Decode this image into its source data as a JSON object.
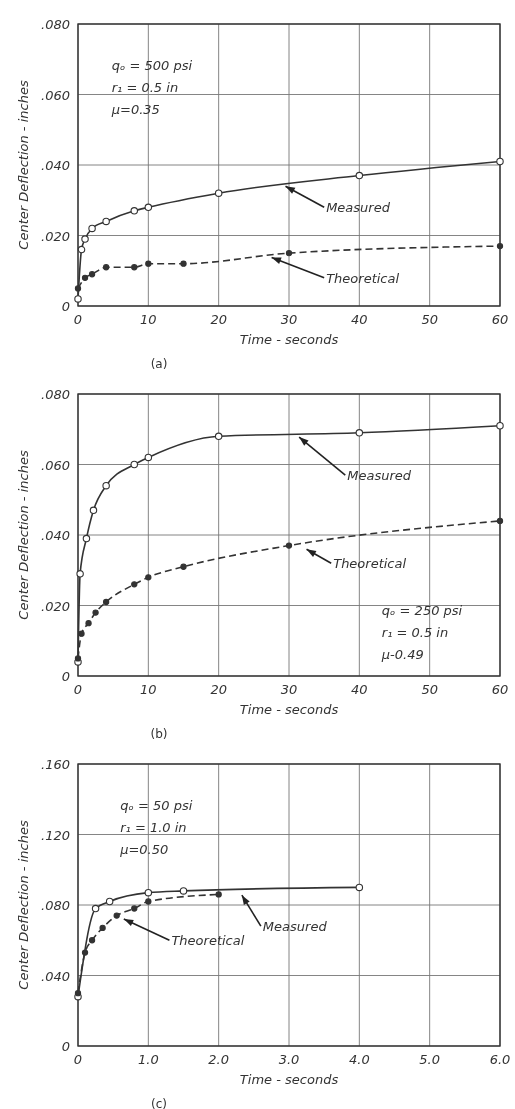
{
  "chart_data": [
    {
      "type": "line",
      "title": "(a)",
      "xlabel": "Time - seconds",
      "ylabel": "Center Deflection - inches",
      "annotations": [
        "qₒ = 500 psi",
        "r₁ = 0.5 in",
        "μ=0.35"
      ],
      "xlim": [
        0,
        60
      ],
      "xticks": [
        0,
        10,
        20,
        30,
        40,
        50,
        60
      ],
      "ylim": [
        0,
        0.08
      ],
      "yticks": [
        {
          "value": 0,
          "label": "0"
        },
        {
          "value": 0.02,
          "label": ".020"
        },
        {
          "value": 0.04,
          "label": ".040"
        },
        {
          "value": 0.06,
          "label": ".060"
        },
        {
          "value": 0.08,
          "label": ".080"
        }
      ],
      "grid": true,
      "series": [
        {
          "name": "Measured",
          "color": "#333333",
          "marker": "circle",
          "line_style": "solid",
          "x": [
            0,
            0.5,
            1,
            2,
            4,
            8,
            10,
            20,
            40,
            60
          ],
          "values": [
            0.002,
            0.016,
            0.019,
            0.022,
            0.024,
            0.027,
            0.028,
            0.032,
            0.037,
            0.041
          ]
        },
        {
          "name": "Theoretical",
          "color": "#333333",
          "marker": "circle",
          "line_style": "dashed",
          "x": [
            0,
            1,
            2,
            4,
            8,
            10,
            15,
            30,
            60
          ],
          "values": [
            0.005,
            0.008,
            0.009,
            0.011,
            0.011,
            0.012,
            0.012,
            0.015,
            0.017
          ]
        }
      ]
    },
    {
      "type": "line",
      "title": "(b)",
      "xlabel": "Time - seconds",
      "ylabel": "Center Deflection - inches",
      "annotations": [
        "qₒ = 250 psi",
        "r₁ = 0.5 in",
        "μ-0.49"
      ],
      "xlim": [
        0,
        60
      ],
      "xticks": [
        0,
        10,
        20,
        30,
        40,
        50,
        60
      ],
      "ylim": [
        0,
        0.08
      ],
      "yticks": [
        {
          "value": 0,
          "label": "0"
        },
        {
          "value": 0.02,
          "label": ".020"
        },
        {
          "value": 0.04,
          "label": ".040"
        },
        {
          "value": 0.06,
          "label": ".060"
        },
        {
          "value": 0.08,
          "label": ".080"
        }
      ],
      "grid": true,
      "series": [
        {
          "name": "Measured",
          "color": "#333333",
          "marker": "circle",
          "line_style": "solid",
          "x": [
            0,
            0.3,
            1.2,
            2.2,
            4,
            8,
            10,
            20,
            40,
            60
          ],
          "values": [
            0.004,
            0.029,
            0.039,
            0.047,
            0.054,
            0.06,
            0.062,
            0.068,
            0.069,
            0.071
          ]
        },
        {
          "name": "Theoretical",
          "color": "#333333",
          "marker": "circle",
          "line_style": "dashed",
          "x": [
            0,
            0.5,
            1.5,
            2.5,
            4,
            8,
            10,
            15,
            30,
            60
          ],
          "values": [
            0.005,
            0.012,
            0.015,
            0.018,
            0.021,
            0.026,
            0.028,
            0.031,
            0.037,
            0.044
          ]
        }
      ]
    },
    {
      "type": "line",
      "title": "(c)",
      "xlabel": "Time - seconds",
      "ylabel": "Center Deflection - inches",
      "annotations": [
        "qₒ = 50 psi",
        "r₁ = 1.0 in",
        "μ=0.50"
      ],
      "xlim": [
        0,
        6
      ],
      "xticks": [
        {
          "value": 0,
          "label": "0"
        },
        {
          "value": 1,
          "label": "1.0"
        },
        {
          "value": 2,
          "label": "2.0"
        },
        {
          "value": 3,
          "label": "3.0"
        },
        {
          "value": 4,
          "label": "4.0"
        },
        {
          "value": 5,
          "label": "5.0"
        },
        {
          "value": 6,
          "label": "6.0"
        }
      ],
      "ylim": [
        0,
        0.16
      ],
      "yticks": [
        {
          "value": 0,
          "label": "0"
        },
        {
          "value": 0.04,
          "label": ".040"
        },
        {
          "value": 0.08,
          "label": ".080"
        },
        {
          "value": 0.12,
          "label": ".120"
        },
        {
          "value": 0.16,
          "label": ".160"
        }
      ],
      "grid": true,
      "series": [
        {
          "name": "Measured",
          "color": "#333333",
          "marker": "circle",
          "line_style": "solid",
          "x": [
            0,
            0.25,
            0.45,
            1,
            1.5,
            4
          ],
          "values": [
            0.028,
            0.078,
            0.082,
            0.087,
            0.088,
            0.09
          ]
        },
        {
          "name": "Theoretical",
          "color": "#333333",
          "marker": "circle",
          "line_style": "dashed",
          "x": [
            0,
            0.1,
            0.2,
            0.35,
            0.55,
            0.8,
            1,
            2
          ],
          "values": [
            0.03,
            0.053,
            0.06,
            0.067,
            0.074,
            0.078,
            0.082,
            0.086
          ]
        }
      ]
    }
  ]
}
